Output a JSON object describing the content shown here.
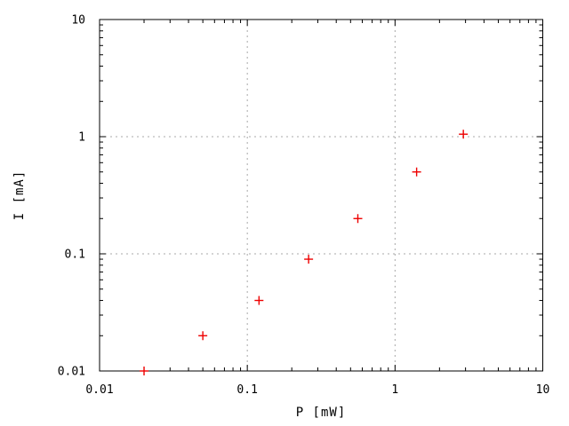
{
  "figure": {
    "background": "#ffffff",
    "border_color": "#000000",
    "grid_color": "#a8a8a8"
  },
  "chart_data": {
    "type": "scatter",
    "title": "",
    "xlabel": "P [mW]",
    "ylabel": "I [mA]",
    "x_scale": "log",
    "y_scale": "log",
    "xlim": [
      0.01,
      10
    ],
    "ylim": [
      0.01,
      10
    ],
    "x_ticks": [
      0.01,
      0.1,
      1,
      10
    ],
    "x_tick_labels": [
      "0.01",
      "0.1",
      "1",
      "10"
    ],
    "y_ticks": [
      0.01,
      0.1,
      1,
      10
    ],
    "y_tick_labels": [
      "0.01",
      "0.1",
      "1",
      "10"
    ],
    "minor_ticks": true,
    "grid": true,
    "grid_style": "dotted",
    "legend": "none",
    "marker": "plus",
    "marker_color": "#ee0000",
    "marker_size": 10,
    "series": [
      {
        "name": "measured-points",
        "points": [
          {
            "x": 0.02,
            "y": 0.01
          },
          {
            "x": 0.05,
            "y": 0.02
          },
          {
            "x": 0.12,
            "y": 0.04
          },
          {
            "x": 0.26,
            "y": 0.09
          },
          {
            "x": 0.56,
            "y": 0.2
          },
          {
            "x": 1.4,
            "y": 0.5
          },
          {
            "x": 2.9,
            "y": 1.05
          }
        ]
      }
    ]
  }
}
